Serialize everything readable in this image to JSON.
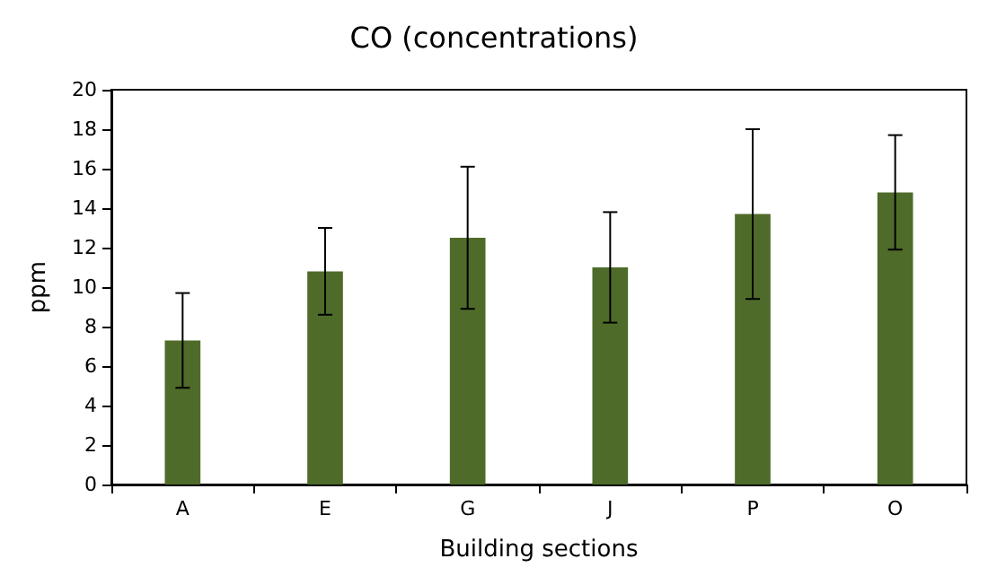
{
  "chart_data": {
    "type": "bar",
    "title": "CO (concentrations)",
    "xlabel": "Building sections",
    "ylabel": "ppm",
    "categories": [
      "A",
      "E",
      "G",
      "J",
      "P",
      "O"
    ],
    "values": [
      7.3,
      10.8,
      12.5,
      11.0,
      13.7,
      14.8
    ],
    "errors": [
      2.4,
      2.2,
      3.6,
      2.8,
      4.3,
      2.9
    ],
    "color": "#4e6b2a",
    "ylim": [
      0,
      20
    ],
    "yticks": [
      0,
      2,
      4,
      6,
      8,
      10,
      12,
      14,
      16,
      18,
      20
    ],
    "grid": false
  }
}
